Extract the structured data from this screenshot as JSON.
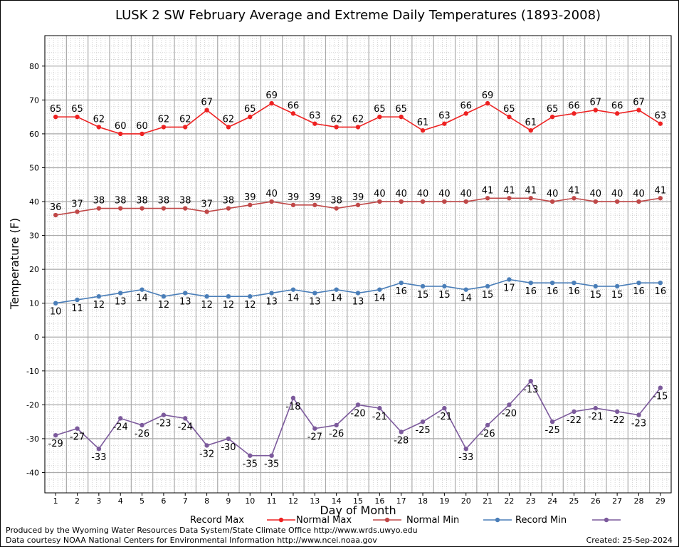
{
  "chart_data": {
    "type": "line",
    "title": "LUSK 2 SW February Average and Extreme Daily Temperatures (1893-2008)",
    "xlabel": "Day of Month",
    "ylabel": "Temperature (F)",
    "x": [
      1,
      2,
      3,
      4,
      5,
      6,
      7,
      8,
      9,
      10,
      11,
      12,
      13,
      14,
      15,
      16,
      17,
      18,
      19,
      20,
      21,
      22,
      23,
      24,
      25,
      26,
      27,
      28,
      29
    ],
    "ylim": [
      -46,
      89
    ],
    "yticks": [
      -40,
      -30,
      -20,
      -10,
      0,
      10,
      20,
      30,
      40,
      50,
      60,
      70,
      80
    ],
    "grid": true,
    "legend_position": "bottom",
    "series": [
      {
        "name": "Record Max",
        "color": "#ee2222",
        "label_side": "above",
        "values": [
          65,
          65,
          62,
          60,
          60,
          62,
          62,
          67,
          62,
          65,
          69,
          66,
          63,
          62,
          62,
          65,
          65,
          61,
          63,
          66,
          69,
          65,
          61,
          65,
          66,
          67,
          66,
          67,
          63
        ]
      },
      {
        "name": "Normal Max",
        "color": "#c04848",
        "label_side": "above",
        "values": [
          36,
          37,
          38,
          38,
          38,
          38,
          38,
          37,
          38,
          39,
          40,
          39,
          39,
          38,
          39,
          40,
          40,
          40,
          40,
          40,
          41,
          41,
          41,
          40,
          41,
          40,
          40,
          40,
          41
        ]
      },
      {
        "name": "Normal Min",
        "color": "#4a7eb8",
        "label_side": "below",
        "values": [
          10,
          11,
          12,
          13,
          14,
          12,
          13,
          12,
          12,
          12,
          13,
          14,
          13,
          14,
          13,
          14,
          16,
          15,
          15,
          14,
          15,
          17,
          16,
          16,
          16,
          15,
          15,
          16,
          16
        ]
      },
      {
        "name": "Record Min",
        "color": "#7c5a9c",
        "label_side": "below",
        "values": [
          -29,
          -27,
          -33,
          -24,
          -26,
          -23,
          -24,
          -32,
          -30,
          -35,
          -35,
          -18,
          -27,
          -26,
          -20,
          -21,
          -28,
          -25,
          -21,
          -33,
          -26,
          -20,
          -13,
          -25,
          -22,
          -21,
          -22,
          -23,
          -15
        ]
      }
    ]
  },
  "footer": {
    "line1": "Produced by the Wyoming Water Resources Data System/State Climate Office http://www.wrds.uwyo.edu",
    "line2": "Data courtesy NOAA National Centers for Environmental Information http://www.ncei.noaa.gov",
    "created": "Created: 25-Sep-2024"
  }
}
